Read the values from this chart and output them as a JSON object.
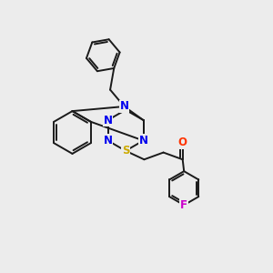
{
  "background_color": "#ececec",
  "figsize": [
    3.0,
    3.0
  ],
  "dpi": 100,
  "atom_colors": {
    "N": "#0000ee",
    "S": "#ccaa00",
    "O": "#ff3300",
    "F": "#cc00cc",
    "C": "#1a1a1a"
  },
  "bond_color": "#1a1a1a",
  "bond_lw": 1.4,
  "font_size": 8.5
}
